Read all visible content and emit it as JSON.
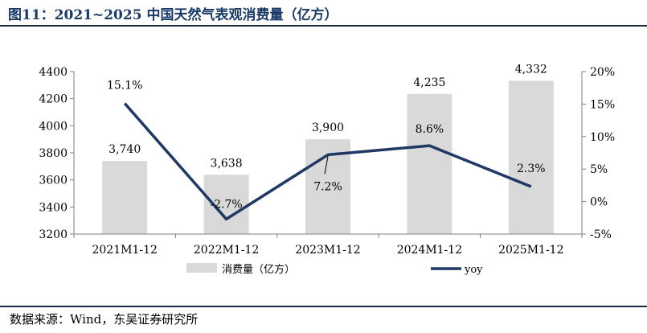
{
  "figure": {
    "title": "图11：2021~2025 中国天然气表观消费量（亿方）",
    "source": "数据来源：Wind，东吴证券研究所"
  },
  "chart_data": {
    "type": "bar+line",
    "categories": [
      "2021M1-12",
      "2022M1-12",
      "2023M1-12",
      "2024M1-12",
      "2025M1-12"
    ],
    "series": [
      {
        "name": "消费量（亿方）",
        "type": "bar",
        "axis": "left",
        "values": [
          3740,
          3638,
          3900,
          4235,
          4332
        ],
        "labels": [
          "3,740",
          "3,638",
          "3,900",
          "4,235",
          "4,332"
        ],
        "color": "#d9d9d9"
      },
      {
        "name": "yoy",
        "type": "line",
        "axis": "right",
        "values": [
          15.1,
          -2.7,
          7.2,
          8.6,
          2.3
        ],
        "labels": [
          "15.1%",
          "-2.7%",
          "7.2%",
          "8.6%",
          "2.3%"
        ],
        "color": "#1f3864"
      }
    ],
    "y_left": {
      "min": 3200,
      "max": 4400,
      "ticks": [
        "3200",
        "3400",
        "3600",
        "3800",
        "4000",
        "4200",
        "4400"
      ]
    },
    "y_right": {
      "min": -5,
      "max": 20,
      "ticks": [
        "-5%",
        "0%",
        "5%",
        "10%",
        "15%",
        "20%"
      ]
    },
    "grid": false,
    "legend_position": "bottom"
  }
}
